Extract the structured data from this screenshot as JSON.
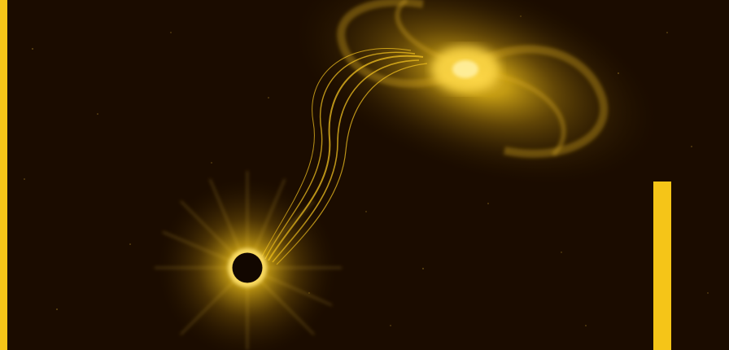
{
  "colors": {
    "background": "#1b0c00",
    "accent": "#f5c518",
    "glow": "#ffd23a",
    "hole": "#120700"
  },
  "scene": {
    "subject": "galaxy-black-hole-artwork"
  }
}
